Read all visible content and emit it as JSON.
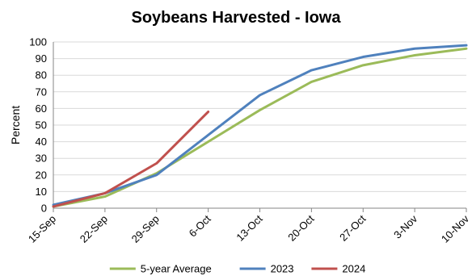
{
  "chart_data": {
    "type": "line",
    "title": "Soybeans Harvested - Iowa",
    "xlabel": "",
    "ylabel": "Percent",
    "ylim": [
      0,
      100
    ],
    "yticks": [
      0,
      10,
      20,
      30,
      40,
      50,
      60,
      70,
      80,
      90,
      100
    ],
    "categories": [
      "15-Sep",
      "22-Sep",
      "29-Sep",
      "6-Oct",
      "13-Oct",
      "20-Oct",
      "27-Oct",
      "3-Nov",
      "10-Nov"
    ],
    "grid": true,
    "legend_position": "bottom",
    "series": [
      {
        "name": "5-year Average",
        "color": "#9bbb59",
        "values": [
          1,
          7,
          21,
          40,
          59,
          76,
          86,
          92,
          96
        ]
      },
      {
        "name": "2023",
        "color": "#4f81bd",
        "values": [
          2,
          9,
          20,
          44,
          68,
          83,
          91,
          96,
          98
        ]
      },
      {
        "name": "2024",
        "color": "#c0504d",
        "values": [
          1,
          9,
          27,
          58,
          null,
          null,
          null,
          null,
          null
        ]
      }
    ]
  }
}
